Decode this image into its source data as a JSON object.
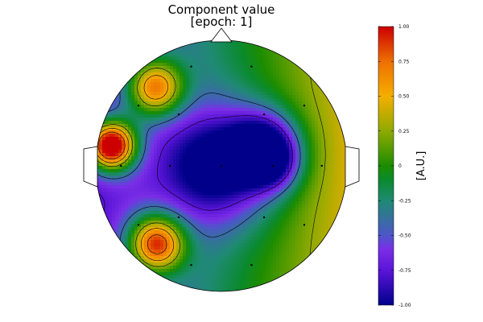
{
  "chart_data": {
    "type": "heatmap",
    "subtype": "eeg-topoplot",
    "title_line1": "Component value",
    "title_line2": "[epoch: 1]",
    "colorbar": {
      "label": "[A.U.]",
      "range": [
        -1.0,
        1.0
      ],
      "ticks": [
        {
          "value": 1.0,
          "label": "1.00"
        },
        {
          "value": 0.75,
          "label": "0.75"
        },
        {
          "value": 0.5,
          "label": "0.50"
        },
        {
          "value": 0.25,
          "label": "0.25"
        },
        {
          "value": 0.0,
          "label": "0"
        },
        {
          "value": -0.25,
          "label": "-0.25"
        },
        {
          "value": -0.5,
          "label": "-0.50"
        },
        {
          "value": -0.75,
          "label": "-0.75"
        },
        {
          "value": -1.0,
          "label": "-1.00"
        }
      ],
      "stops": [
        {
          "value": -1.0,
          "color": "#00008b"
        },
        {
          "value": -0.75,
          "color": "#5b15d8"
        },
        {
          "value": -0.6,
          "color": "#7a2ee6"
        },
        {
          "value": -0.5,
          "color": "#4d56c8"
        },
        {
          "value": -0.25,
          "color": "#1f8a73"
        },
        {
          "value": -0.1,
          "color": "#0a8a2e"
        },
        {
          "value": 0.0,
          "color": "#1c8c00"
        },
        {
          "value": 0.25,
          "color": "#8faa00"
        },
        {
          "value": 0.5,
          "color": "#f5ae00"
        },
        {
          "value": 0.75,
          "color": "#ee6f00"
        },
        {
          "value": 1.0,
          "color": "#cc0000"
        }
      ]
    },
    "contour_levels": [
      -0.75,
      -0.4,
      0.25,
      0.5,
      0.75
    ],
    "extrema": [
      {
        "name": "posterior-right",
        "x": 0.35,
        "y": 0.15,
        "value": -1.0,
        "spread": 0.19
      },
      {
        "name": "left-temporal",
        "x": -0.88,
        "y": 0.16,
        "value": 2.0,
        "spread": 0.14
      },
      {
        "name": "left-occipital-blob",
        "x": -0.52,
        "y": -0.62,
        "value": 1.45,
        "spread": 0.16
      },
      {
        "name": "left-frontal-blob",
        "x": -0.53,
        "y": 0.62,
        "value": 1.25,
        "spread": 0.16
      },
      {
        "name": "center-minimum",
        "x": 0.0,
        "y": 0.0,
        "value": -1.0,
        "spread": 0.32
      },
      {
        "name": "center-lobe",
        "x": 0.42,
        "y": 0.0,
        "value": -0.45,
        "spread": 0.15
      }
    ],
    "electrodes": [
      {
        "x": -0.24,
        "y": 0.79
      },
      {
        "x": 0.24,
        "y": 0.79
      },
      {
        "x": -0.66,
        "y": 0.48
      },
      {
        "x": -0.34,
        "y": 0.41
      },
      {
        "x": 0.34,
        "y": 0.41
      },
      {
        "x": 0.66,
        "y": 0.48
      },
      {
        "x": -0.8,
        "y": 0.0
      },
      {
        "x": -0.41,
        "y": 0.0
      },
      {
        "x": 0.0,
        "y": 0.0
      },
      {
        "x": 0.41,
        "y": 0.0
      },
      {
        "x": 0.8,
        "y": 0.0
      },
      {
        "x": -0.66,
        "y": -0.47
      },
      {
        "x": -0.34,
        "y": -0.41
      },
      {
        "x": 0.34,
        "y": -0.41
      },
      {
        "x": 0.66,
        "y": -0.47
      },
      {
        "x": -0.24,
        "y": -0.79
      },
      {
        "x": 0.24,
        "y": -0.79
      }
    ]
  }
}
